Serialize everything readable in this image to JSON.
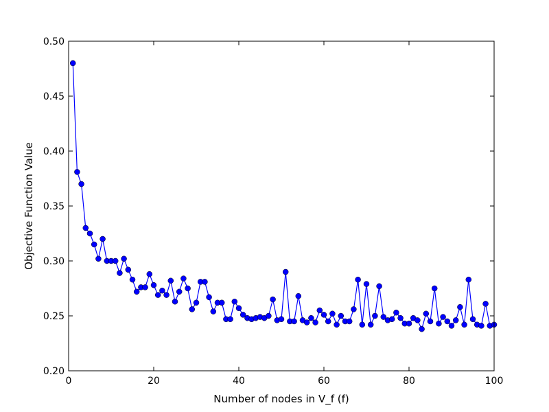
{
  "chart_data": {
    "type": "line",
    "title": "",
    "xlabel": "Number of nodes in V_f (f)",
    "ylabel": "Objective Function Value",
    "xlim": [
      0,
      100
    ],
    "ylim": [
      0.2,
      0.5
    ],
    "xticks": [
      0,
      20,
      40,
      60,
      80,
      100
    ],
    "yticks": [
      0.2,
      0.25,
      0.3,
      0.35,
      0.4,
      0.45,
      0.5
    ],
    "xtick_labels": [
      "0",
      "20",
      "40",
      "60",
      "80",
      "100"
    ],
    "ytick_labels": [
      "0.20",
      "0.25",
      "0.30",
      "0.35",
      "0.40",
      "0.45",
      "0.50"
    ],
    "grid": false,
    "legend": "none",
    "series": [
      {
        "color": "#0000ff",
        "marker": "circle",
        "x": [
          1,
          2,
          3,
          4,
          5,
          6,
          7,
          8,
          9,
          10,
          11,
          12,
          13,
          14,
          15,
          16,
          17,
          18,
          19,
          20,
          21,
          22,
          23,
          24,
          25,
          26,
          27,
          28,
          29,
          30,
          31,
          32,
          33,
          34,
          35,
          36,
          37,
          38,
          39,
          40,
          41,
          42,
          43,
          44,
          45,
          46,
          47,
          48,
          49,
          50,
          51,
          52,
          53,
          54,
          55,
          56,
          57,
          58,
          59,
          60,
          61,
          62,
          63,
          64,
          65,
          66,
          67,
          68,
          69,
          70,
          71,
          72,
          73,
          74,
          75,
          76,
          77,
          78,
          79,
          80,
          81,
          82,
          83,
          84,
          85,
          86,
          87,
          88,
          89,
          90,
          91,
          92,
          93,
          94,
          95,
          96,
          97,
          98,
          99,
          100
        ],
        "y": [
          0.48,
          0.381,
          0.37,
          0.33,
          0.325,
          0.315,
          0.302,
          0.32,
          0.3,
          0.3,
          0.3,
          0.289,
          0.302,
          0.292,
          0.283,
          0.272,
          0.276,
          0.276,
          0.288,
          0.278,
          0.269,
          0.273,
          0.269,
          0.282,
          0.263,
          0.272,
          0.284,
          0.275,
          0.256,
          0.262,
          0.281,
          0.281,
          0.267,
          0.254,
          0.262,
          0.262,
          0.247,
          0.247,
          0.263,
          0.257,
          0.251,
          0.248,
          0.247,
          0.248,
          0.249,
          0.248,
          0.25,
          0.265,
          0.246,
          0.247,
          0.29,
          0.245,
          0.245,
          0.268,
          0.246,
          0.244,
          0.248,
          0.244,
          0.255,
          0.251,
          0.245,
          0.252,
          0.242,
          0.25,
          0.245,
          0.245,
          0.256,
          0.283,
          0.242,
          0.279,
          0.242,
          0.25,
          0.277,
          0.249,
          0.246,
          0.247,
          0.253,
          0.248,
          0.243,
          0.243,
          0.248,
          0.246,
          0.238,
          0.252,
          0.245,
          0.275,
          0.243,
          0.249,
          0.245,
          0.241,
          0.246,
          0.258,
          0.242,
          0.283,
          0.247,
          0.242,
          0.241,
          0.261,
          0.241,
          0.242
        ]
      }
    ]
  }
}
